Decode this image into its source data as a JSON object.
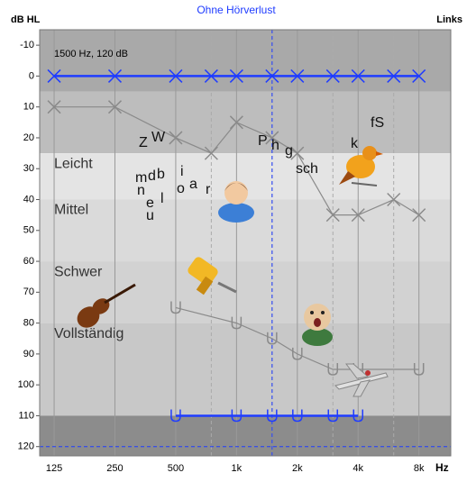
{
  "chart_data": {
    "type": "audiogram",
    "title": "Ohne Hörverlust",
    "y_label": "dB HL",
    "side_label": "Links",
    "x_label": "Hz",
    "x_log": true,
    "y_inverted": true,
    "xlim": [
      106,
      11500
    ],
    "ylim": [
      -15,
      123
    ],
    "xticks": [
      125,
      250,
      500,
      {
        "value": 1000,
        "label": "1k"
      },
      {
        "value": 2000,
        "label": "2k"
      },
      {
        "value": 4000,
        "label": "4k"
      },
      {
        "value": 8000,
        "label": "8k"
      }
    ],
    "xminor": [
      750,
      1500,
      3000,
      6000
    ],
    "yticks": [
      -10,
      0,
      10,
      20,
      30,
      40,
      50,
      60,
      70,
      80,
      90,
      100,
      110,
      120
    ],
    "zones": [
      {
        "range": [
          -15,
          5
        ],
        "color": "#a9a9a9"
      },
      {
        "range": [
          5,
          25
        ],
        "color": "#bdbdbd"
      },
      {
        "range": [
          25,
          40
        ],
        "color": "#e4e4e4",
        "label": "Leicht"
      },
      {
        "range": [
          40,
          60
        ],
        "color": "#dadada",
        "label": "Mittel"
      },
      {
        "range": [
          60,
          80
        ],
        "color": "#d2d2d2",
        "label": "Schwer"
      },
      {
        "range": [
          80,
          110
        ],
        "color": "#c8c8c8",
        "label": "Vollständig"
      },
      {
        "range": [
          110,
          123
        ],
        "color": "#8c8c8c"
      }
    ],
    "series": [
      {
        "color": "#1f3cff",
        "marker": "x",
        "x": [
          125,
          250,
          500,
          750,
          1000,
          1500,
          2000,
          3000,
          4000,
          6000,
          8000
        ],
        "values": [
          0,
          0,
          0,
          0,
          0,
          0,
          0,
          0,
          0,
          0,
          0
        ]
      },
      {
        "color": "#1f3cff",
        "marker": "u",
        "x": [
          500,
          1000,
          1500,
          2000,
          3000,
          4000
        ],
        "values": [
          110,
          110,
          110,
          110,
          110,
          110
        ]
      },
      {
        "color": "#8a8a8a",
        "marker": "x",
        "x": [
          125,
          250,
          500,
          750,
          1000,
          1500,
          2000,
          3000,
          4000,
          6000,
          8000
        ],
        "values": [
          10,
          10,
          20,
          25,
          15,
          20,
          25,
          45,
          45,
          40,
          45
        ]
      },
      {
        "color": "#8a8a8a",
        "marker": "u",
        "x": [
          500,
          1000,
          1500,
          2000,
          3000,
          4000,
          8000
        ],
        "values": [
          75,
          80,
          85,
          90,
          95,
          95,
          95
        ]
      }
    ],
    "cursor": {
      "x": 1500,
      "y": 120,
      "label": "1500 Hz, 120 dB",
      "color": "#1f3cff"
    },
    "phonemes": [
      "Z",
      "W",
      "P",
      "h",
      "g",
      "sch",
      "k",
      "fS",
      "m",
      "d",
      "b",
      "i",
      "n",
      "o",
      "a",
      "r",
      "e",
      "l",
      "u"
    ]
  }
}
